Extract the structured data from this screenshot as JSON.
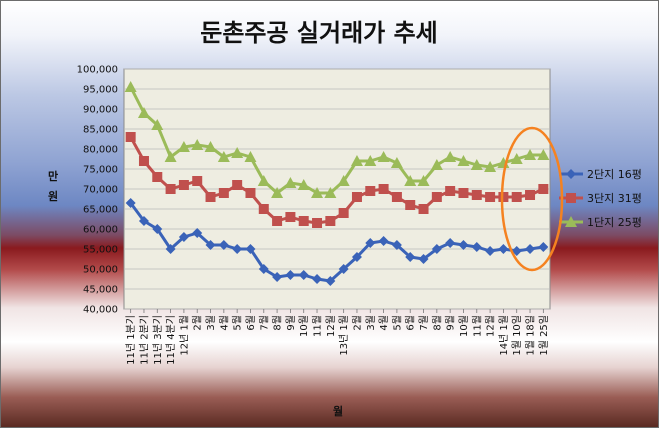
{
  "chart_data": {
    "type": "line",
    "title": "둔촌주공 실거래가 추세",
    "ylabel": "만\n원",
    "xlabel": "월",
    "ylim": [
      40000,
      100000
    ],
    "yticks": [
      40000,
      45000,
      50000,
      55000,
      60000,
      65000,
      70000,
      75000,
      80000,
      85000,
      90000,
      95000,
      100000
    ],
    "ytick_labels": [
      "40,000",
      "45,000",
      "50,000",
      "55,000",
      "60,000",
      "65,000",
      "70,000",
      "75,000",
      "80,000",
      "85,000",
      "90,000",
      "95,000",
      "100,000"
    ],
    "grid": true,
    "legend_position": "right",
    "categories": [
      "11년 1분기",
      "11년 2분기",
      "11년 3분기",
      "11년 4분기",
      "12년 1월",
      "2월",
      "3월",
      "4월",
      "5월",
      "6월",
      "7월",
      "8월",
      "9월",
      "10월",
      "11월",
      "12월",
      "13년 1월",
      "2월",
      "3월",
      "4월",
      "5월",
      "6월",
      "7월",
      "8월",
      "9월",
      "10월",
      "11월",
      "12월",
      "14년 1월",
      "1월 10일",
      "1월 18일",
      "1월 25일"
    ],
    "series": [
      {
        "name": "2단지 16평",
        "color": "#3a63b8",
        "marker": "diamond",
        "values": [
          66500,
          62000,
          60000,
          55000,
          58000,
          59000,
          56000,
          56000,
          55000,
          55000,
          50000,
          48000,
          48500,
          48500,
          47500,
          47000,
          50000,
          53000,
          56500,
          57000,
          56000,
          53000,
          52500,
          55000,
          56500,
          56000,
          55500,
          54500,
          55000,
          54500,
          55000,
          55500
        ]
      },
      {
        "name": "3단지 31평",
        "color": "#c0504d",
        "marker": "square",
        "values": [
          83000,
          77000,
          73000,
          70000,
          71000,
          72000,
          68000,
          69000,
          71000,
          69000,
          65000,
          62000,
          63000,
          62000,
          61500,
          62000,
          64000,
          68000,
          69500,
          70000,
          68000,
          66000,
          65000,
          68000,
          69500,
          69000,
          68500,
          68000,
          68000,
          68000,
          68500,
          70000
        ]
      },
      {
        "name": "1단지 25평",
        "color": "#9bbb59",
        "marker": "triangle",
        "values": [
          95500,
          89000,
          86000,
          78000,
          80500,
          81000,
          80500,
          78000,
          79000,
          78000,
          72000,
          69000,
          71500,
          71000,
          69000,
          69000,
          72000,
          77000,
          77000,
          78000,
          76500,
          72000,
          72000,
          76000,
          78000,
          77000,
          76000,
          75500,
          76500,
          77500,
          78500,
          78500
        ]
      }
    ],
    "annotation_color": "#f58220"
  }
}
